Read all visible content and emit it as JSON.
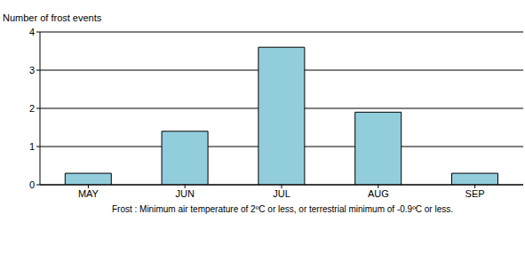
{
  "chart_data": {
    "type": "bar",
    "y_label": "Number of frost events",
    "categories": [
      "MAY",
      "JUN",
      "JUL",
      "AUG",
      "SEP"
    ],
    "values": [
      0.3,
      1.4,
      3.6,
      1.9,
      0.3
    ],
    "color": "#92cddc",
    "ylim": [
      0,
      4
    ],
    "yticks": [
      0,
      1,
      2,
      3,
      4
    ],
    "grid": true,
    "annotations": [
      "Frost : Minimum air temperature of 2ºC or less, or terrestrial minimum of -0.9ºC or less."
    ]
  }
}
